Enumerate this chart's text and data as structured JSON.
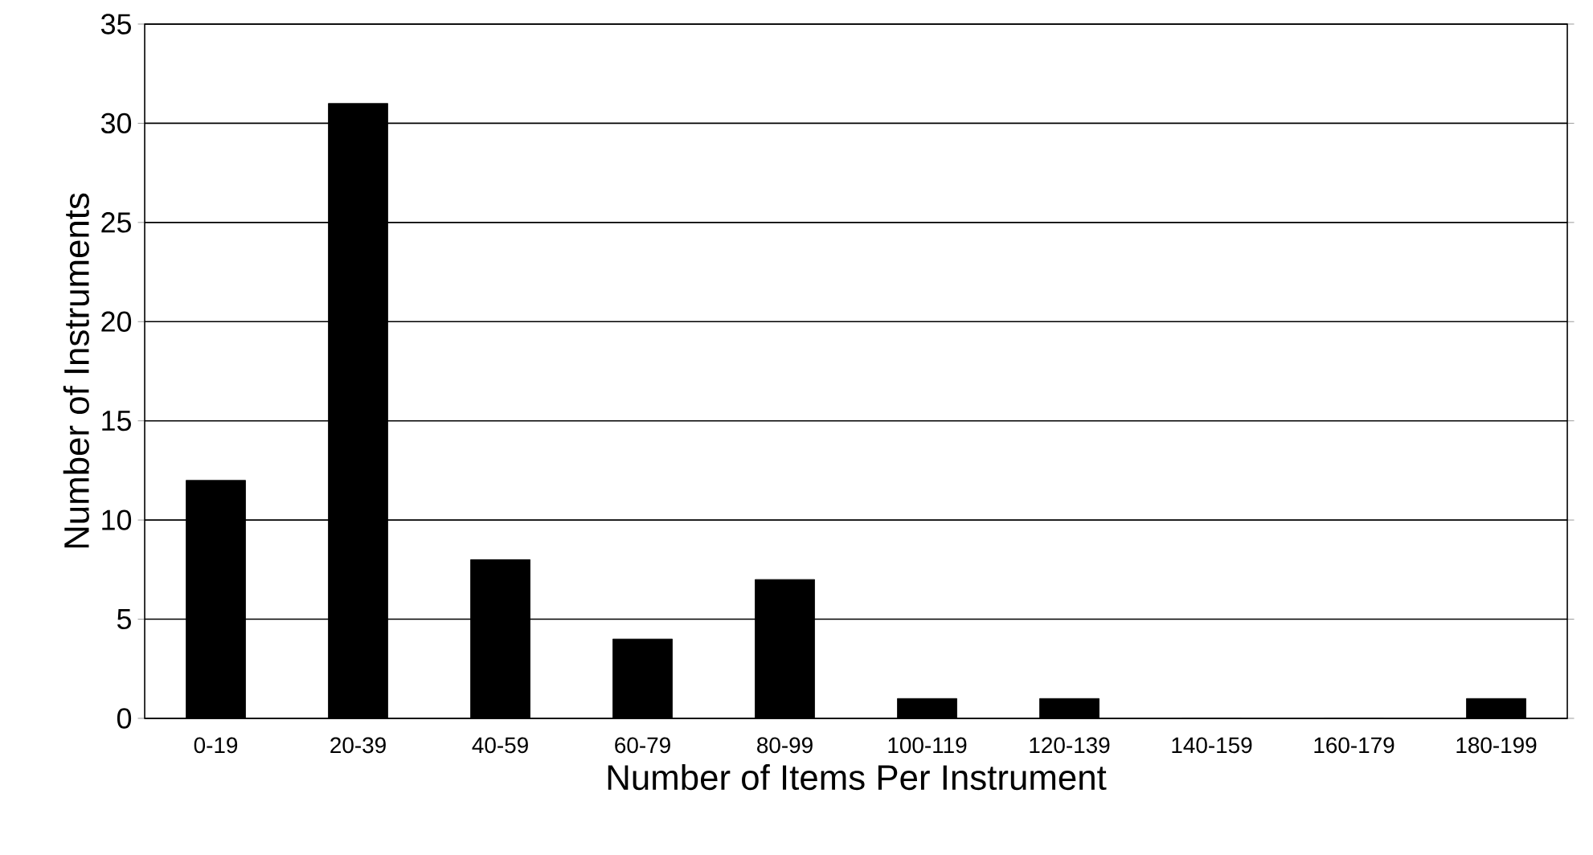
{
  "chart_data": {
    "type": "bar",
    "categories": [
      "0-19",
      "20-39",
      "40-59",
      "60-79",
      "80-99",
      "100-119",
      "120-139",
      "140-159",
      "160-179",
      "180-199"
    ],
    "values": [
      12,
      31,
      8,
      4,
      7,
      1,
      1,
      0,
      0,
      1
    ],
    "color": "#000000",
    "xlabel": "Number of Items Per Instrument",
    "ylabel": "Number of Instruments",
    "ylim": [
      0,
      35
    ],
    "yticks": [
      0,
      5,
      10,
      15,
      20,
      25,
      30,
      35
    ],
    "grid": "y"
  }
}
